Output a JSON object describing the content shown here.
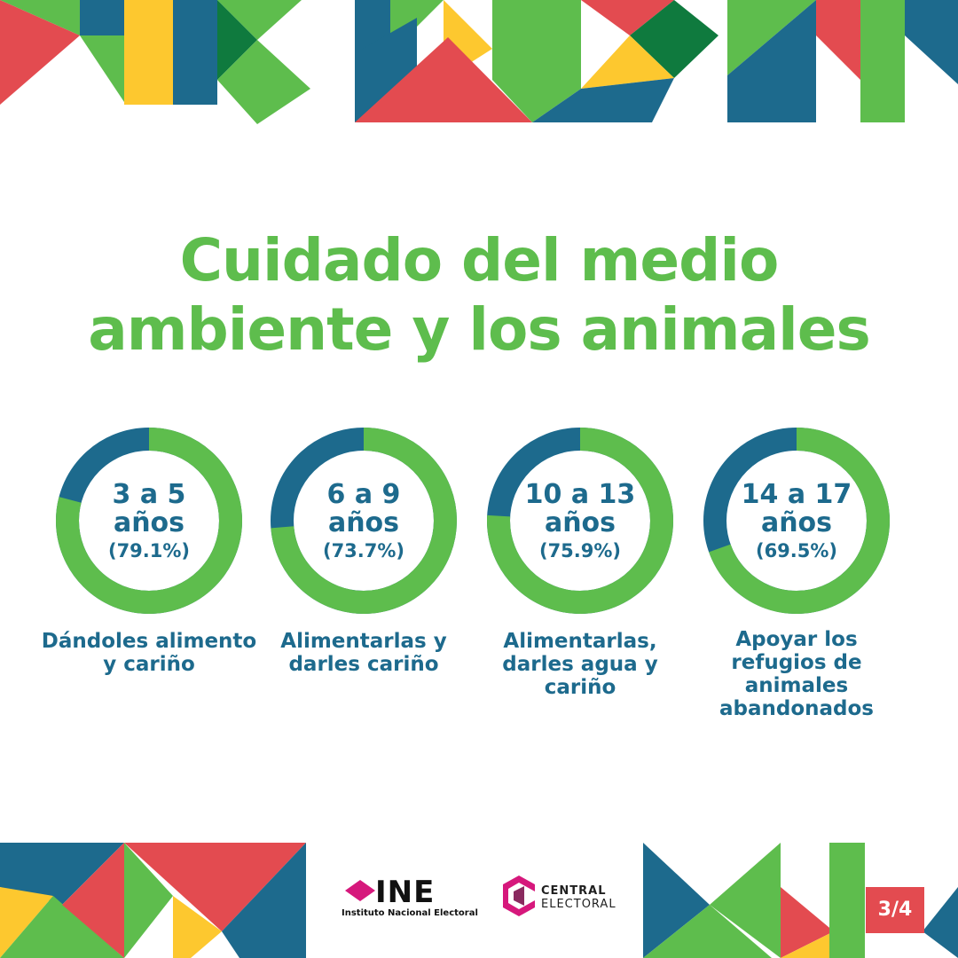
{
  "title_line1": "Cuidado del medio",
  "title_line2": "ambiente y los animales",
  "colors": {
    "green": "#5ebd4d",
    "blue": "#1d6a8d",
    "dark_green": "#0f7a3e",
    "red": "#e34b50",
    "yellow": "#fdc82f",
    "ine_pink": "#d6187c"
  },
  "chart_data": {
    "type": "pie",
    "variant": "donut",
    "items": [
      {
        "group_line1": "3 a 5",
        "group_line2": "años",
        "pct_label": "(79.1%)",
        "value": 79.1,
        "label": "Dándoles alimento y cariño"
      },
      {
        "group_line1": "6 a 9",
        "group_line2": "años",
        "pct_label": "(73.7%)",
        "value": 73.7,
        "label": "Alimentarlas y darles cariño"
      },
      {
        "group_line1": "10 a 13",
        "group_line2": "años",
        "pct_label": "(75.9%)",
        "value": 75.9,
        "label": "Alimentarlas, darles agua y cariño"
      },
      {
        "group_line1": "14 a 17",
        "group_line2": "años",
        "pct_label": "(69.5%)",
        "value": 69.5,
        "label": "Apoyar los refugios de animales abandonados"
      }
    ]
  },
  "logos": {
    "ine_word": "INE",
    "ine_sub": "Instituto Nacional Electoral",
    "central_line1": "CENTRAL",
    "central_line2": "ELECTORAL"
  },
  "page_indicator": "3/4"
}
